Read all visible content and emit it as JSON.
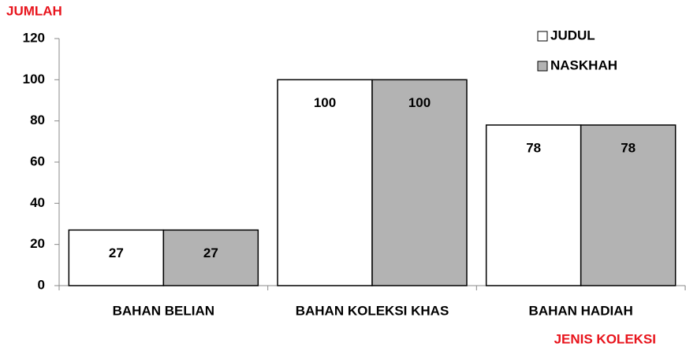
{
  "chart_data": {
    "type": "bar",
    "y_label": "JUMLAH",
    "x_label": "JENIS KOLEKSI",
    "categories": [
      "BAHAN BELIAN",
      "BAHAN KOLEKSI KHAS",
      "BAHAN HADIAH"
    ],
    "series": [
      {
        "name": "JUDUL",
        "color": "#ffffff",
        "values": [
          27,
          100,
          78
        ]
      },
      {
        "name": "NASKHAH",
        "color": "#b3b3b3",
        "values": [
          27,
          100,
          78
        ]
      }
    ],
    "ylim": [
      0,
      120
    ],
    "yticks": [
      0,
      20,
      40,
      60,
      80,
      100,
      120
    ],
    "grid": false,
    "legend": "top-right"
  }
}
